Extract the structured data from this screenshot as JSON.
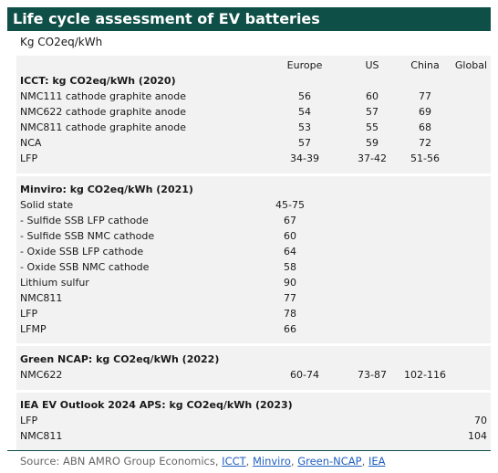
{
  "title": "Life cycle assessment of EV batteries",
  "subtitle": "Kg CO2eq/kWh",
  "columns": [
    "Europe",
    "US",
    "China",
    "Global"
  ],
  "sections": [
    {
      "heading": "ICCT: kg CO2eq/kWh (2020)",
      "rows": [
        {
          "label": "NMC111 cathode graphite anode",
          "europe": "56",
          "us": "60",
          "china": "77",
          "global": ""
        },
        {
          "label": "NMC622 cathode graphite anode",
          "europe": "54",
          "us": "57",
          "china": "69",
          "global": ""
        },
        {
          "label": "NMC811 cathode graphite anode",
          "europe": "53",
          "us": "55",
          "china": "68",
          "global": ""
        },
        {
          "label": "NCA",
          "europe": "57",
          "us": "59",
          "china": "72",
          "global": ""
        },
        {
          "label": "LFP",
          "europe": "34-39",
          "us": "37-42",
          "china": "51-56",
          "global": ""
        }
      ]
    },
    {
      "heading": "Minviro: kg CO2eq/kWh (2021)",
      "rows": [
        {
          "label": "Solid state",
          "europe": "45-75",
          "us": "",
          "china": "",
          "global": ""
        },
        {
          "label": "- Sulfide SSB LFP cathode",
          "europe": "67",
          "us": "",
          "china": "",
          "global": ""
        },
        {
          "label": "- Sulfide SSB NMC cathode",
          "europe": "60",
          "us": "",
          "china": "",
          "global": ""
        },
        {
          "label": "- Oxide SSB LFP cathode",
          "europe": "64",
          "us": "",
          "china": "",
          "global": ""
        },
        {
          "label": "- Oxide SSB NMC cathode",
          "europe": "58",
          "us": "",
          "china": "",
          "global": ""
        },
        {
          "label": "Lithium sulfur",
          "europe": "90",
          "us": "",
          "china": "",
          "global": ""
        },
        {
          "label": "NMC811",
          "europe": "77",
          "us": "",
          "china": "",
          "global": ""
        },
        {
          "label": "LFP",
          "europe": "78",
          "us": "",
          "china": "",
          "global": ""
        },
        {
          "label": "LFMP",
          "europe": "66",
          "us": "",
          "china": "",
          "global": ""
        }
      ]
    },
    {
      "heading": "Green NCAP: kg CO2eq/kWh (2022)",
      "rows": [
        {
          "label": "NMC622",
          "europe": "60-74",
          "us": "73-87",
          "china": "102-116",
          "global": ""
        }
      ]
    },
    {
      "heading": "IEA EV Outlook 2024 APS: kg CO2eq/kWh (2023)",
      "rows": [
        {
          "label": "LFP",
          "europe": "",
          "us": "",
          "china": "",
          "global": "70"
        },
        {
          "label": "NMC811",
          "europe": "",
          "us": "",
          "china": "",
          "global": "104"
        }
      ]
    }
  ],
  "footer": {
    "prefix": "Source: ABN AMRO Group Economics, ",
    "links": [
      "ICCT",
      "Minviro",
      "Green-NCAP",
      "IEA"
    ],
    "separator": ", "
  },
  "colors": {
    "title_bg": "#0e4f47",
    "panel_bg": "#f2f2f2",
    "link": "#1f5fbf"
  }
}
